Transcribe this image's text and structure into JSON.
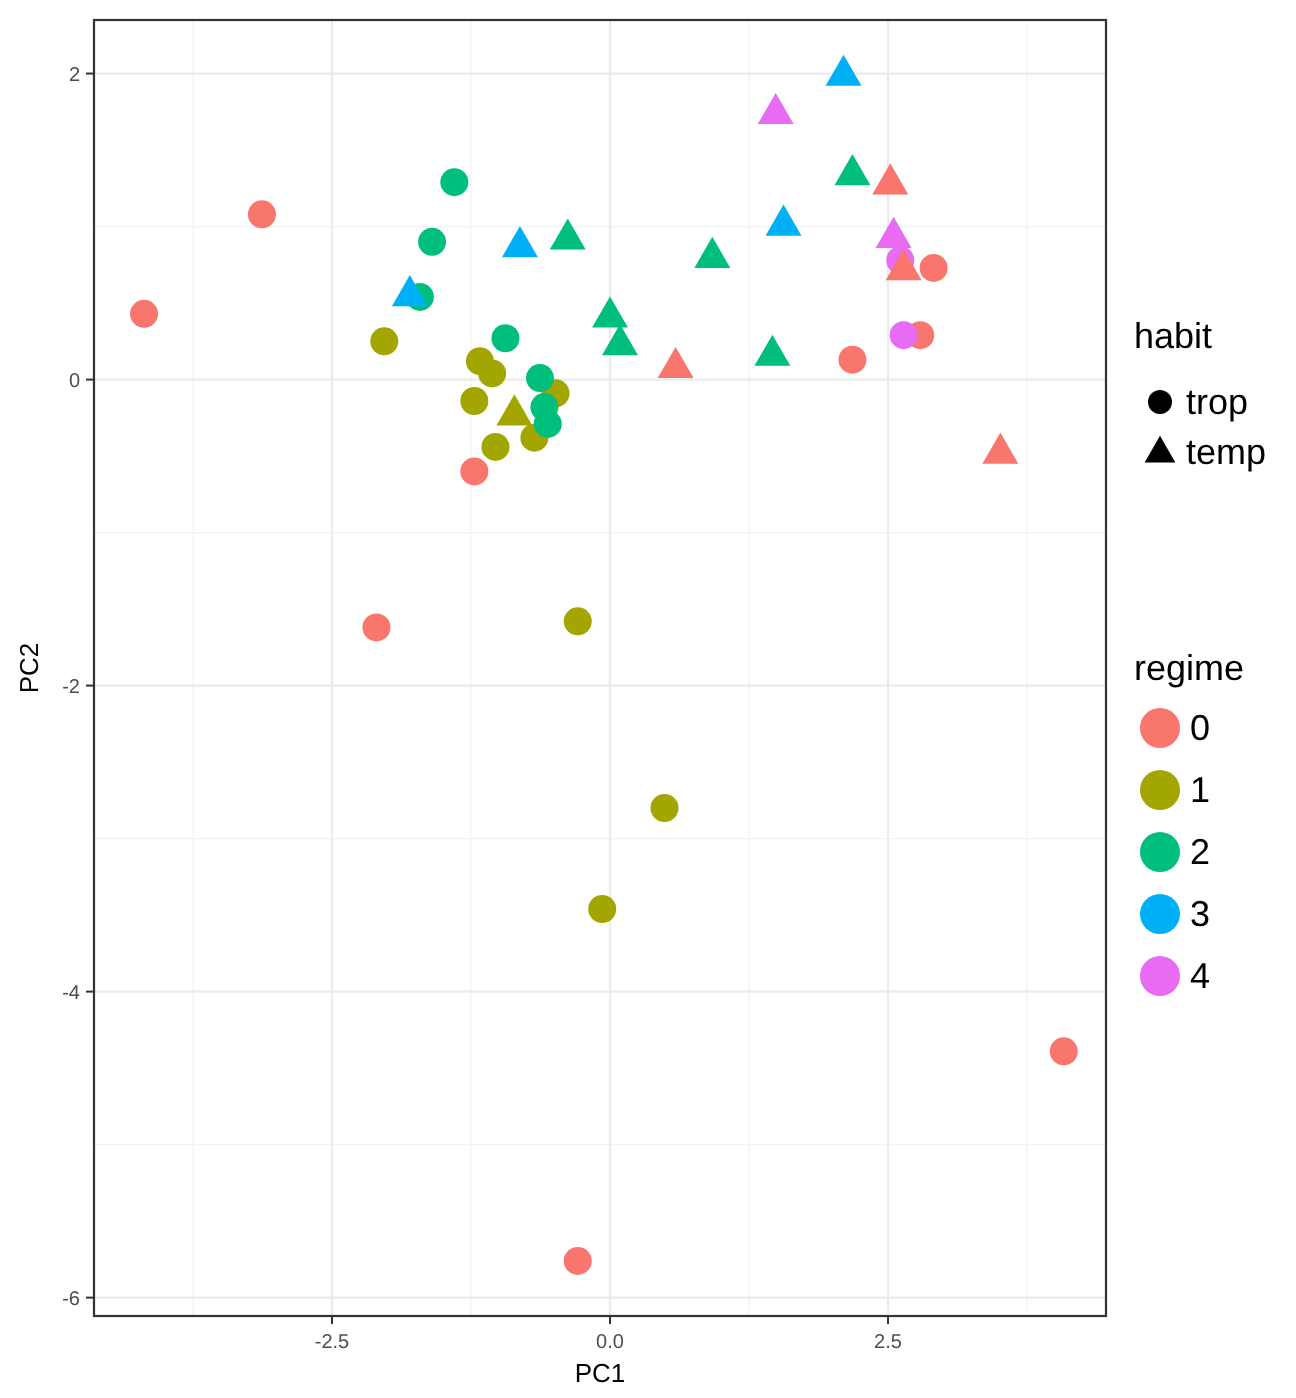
{
  "chart_data": {
    "type": "scatter",
    "xlabel": "PC1",
    "ylabel": "PC2",
    "xlim": [
      -4.64,
      4.46
    ],
    "ylim": [
      -6.12,
      2.35
    ],
    "xticks": [
      {
        "value": -2.5,
        "label": "-2.5"
      },
      {
        "value": 0,
        "label": "0.0"
      },
      {
        "value": 2.5,
        "label": "2.5"
      }
    ],
    "yticks": [
      -6,
      -4,
      -2,
      0,
      2
    ],
    "grid": true,
    "legend": "right",
    "legend_title": "regime",
    "annotations": [
      "habit",
      "trop",
      "temp"
    ],
    "series": [
      {
        "name": "0",
        "color": "#f8766d",
        "marker": "circle",
        "x": [
          -4.19,
          -3.13,
          -1.22,
          -2.1,
          2.18,
          2.79,
          2.91,
          4.08,
          -0.29
        ],
        "values": [
          0.43,
          1.08,
          -0.6,
          -1.62,
          0.13,
          0.29,
          0.73,
          -4.39,
          -5.76
        ]
      },
      {
        "color": "#f8766d",
        "marker": "triangle",
        "x": [
          0.59,
          2.52,
          2.64,
          3.51
        ],
        "values": [
          0.09,
          1.29,
          0.73,
          -0.47
        ]
      },
      {
        "name": "1",
        "color": "#a3a500",
        "marker": "circle",
        "x": [
          -2.03,
          -1.17,
          -1.06,
          -1.22,
          -0.49,
          -1.03,
          -0.68,
          -0.29,
          0.49,
          -0.07
        ],
        "values": [
          0.25,
          0.12,
          0.04,
          -0.14,
          -0.09,
          -0.44,
          -0.38,
          -1.58,
          -2.8,
          -3.46
        ]
      },
      {
        "color": "#a3a500",
        "marker": "triangle",
        "x": [
          -0.86
        ],
        "values": [
          -0.22
        ]
      },
      {
        "name": "2",
        "color": "#00bf7d",
        "marker": "circle",
        "x": [
          -1.4,
          -1.6,
          -1.71,
          -0.94,
          -0.63,
          -0.59,
          -0.56
        ],
        "values": [
          1.29,
          0.9,
          0.54,
          0.27,
          0.01,
          -0.18,
          -0.29
        ]
      },
      {
        "color": "#00bf7d",
        "marker": "triangle",
        "x": [
          -0.38,
          0.0,
          0.09,
          0.92,
          1.46,
          2.18
        ],
        "values": [
          0.93,
          0.42,
          0.24,
          0.81,
          0.17,
          1.35
        ]
      },
      {
        "name": "3",
        "color": "#00b0f6",
        "marker": "triangle",
        "x": [
          -1.8,
          -0.81,
          2.1,
          1.56
        ],
        "values": [
          0.56,
          0.88,
          2.0,
          1.02
        ]
      },
      {
        "name": "4",
        "color": "#e76bf3",
        "marker": "circle",
        "x": [
          2.61,
          2.64
        ],
        "values": [
          0.78,
          0.29
        ]
      },
      {
        "color": "#e76bf3",
        "marker": "triangle",
        "x": [
          1.49,
          2.55
        ],
        "values": [
          1.75,
          0.94
        ]
      }
    ]
  }
}
